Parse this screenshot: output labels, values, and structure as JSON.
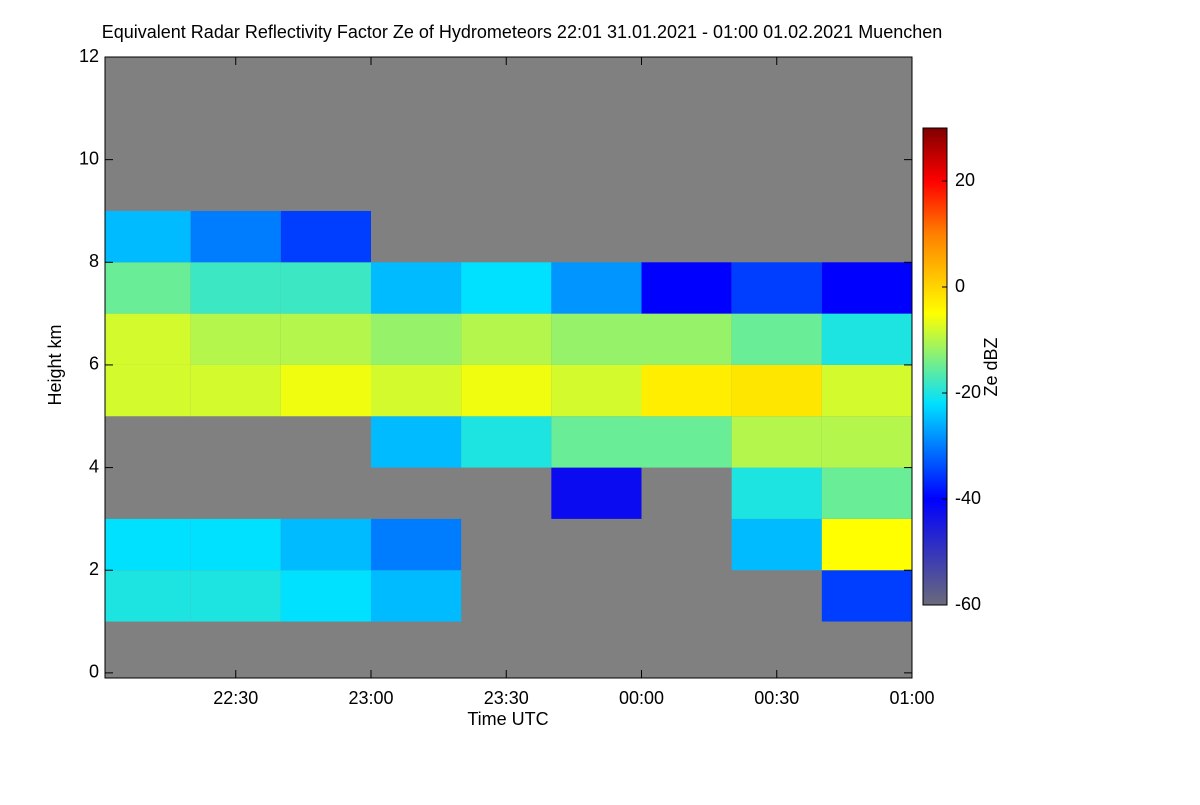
{
  "chart_data": {
    "type": "heatmap",
    "title": "Equivalent Radar Reflectivity Factor Ze of Hydrometeors   22:01 31.01.2021 - 01:00 01.02.2021 Muenchen",
    "x_label": "Time UTC",
    "y_label": "Height km",
    "colorbar_label": "Ze dBZ",
    "background": "#808080",
    "xlim": [
      1,
      180
    ],
    "xticks": [
      {
        "value": 30,
        "label": "22:30"
      },
      {
        "value": 60,
        "label": "23:00"
      },
      {
        "value": 90,
        "label": "23:30"
      },
      {
        "value": 120,
        "label": "00:00"
      },
      {
        "value": 150,
        "label": "00:30"
      },
      {
        "value": 180,
        "label": "01:00"
      }
    ],
    "ylim": [
      -0.1,
      12
    ],
    "yticks": [
      0,
      2,
      4,
      6,
      8,
      10,
      12
    ],
    "zlim": [
      -60,
      30
    ],
    "zticks": [
      -60,
      -40,
      -20,
      0,
      20
    ],
    "colorscale": [
      [
        -60,
        "#6a6a7a"
      ],
      [
        -40,
        "#0000ff"
      ],
      [
        -22,
        "#00e0ff"
      ],
      [
        -5,
        "#ffff00"
      ],
      [
        10,
        "#ff8000"
      ],
      [
        20,
        "#ff0000"
      ],
      [
        30,
        "#800000"
      ]
    ],
    "x_bins": [
      1,
      20,
      40,
      60,
      80,
      100,
      120,
      140,
      160,
      180
    ],
    "y_bins": [
      0,
      1,
      2,
      3,
      4,
      5,
      6,
      7,
      8,
      9,
      10,
      11,
      12
    ],
    "values": [
      [
        null,
        null,
        null,
        null,
        null,
        null,
        null,
        null,
        null
      ],
      [
        -20,
        -20,
        -22,
        -25,
        null,
        null,
        null,
        null,
        -35
      ],
      [
        -22,
        -22,
        -25,
        -30,
        null,
        null,
        null,
        -25,
        -5
      ],
      [
        null,
        null,
        null,
        null,
        null,
        -42,
        null,
        -20,
        -15
      ],
      [
        null,
        null,
        null,
        -25,
        -20,
        -15,
        -15,
        -10,
        -10
      ],
      [
        -8,
        -8,
        -6,
        -8,
        -6,
        -8,
        -3,
        -2,
        -8
      ],
      [
        -8,
        -10,
        -10,
        -12,
        -10,
        -12,
        -12,
        -15,
        -20
      ],
      [
        -15,
        -18,
        -18,
        -25,
        -22,
        -28,
        -40,
        -35,
        -40
      ],
      [
        -25,
        -30,
        -35,
        null,
        null,
        null,
        null,
        null,
        null
      ],
      [
        null,
        null,
        null,
        null,
        null,
        null,
        null,
        null,
        null
      ],
      [
        null,
        null,
        null,
        null,
        null,
        null,
        null,
        null,
        null
      ],
      [
        null,
        null,
        null,
        null,
        null,
        null,
        null,
        null,
        null
      ]
    ]
  }
}
